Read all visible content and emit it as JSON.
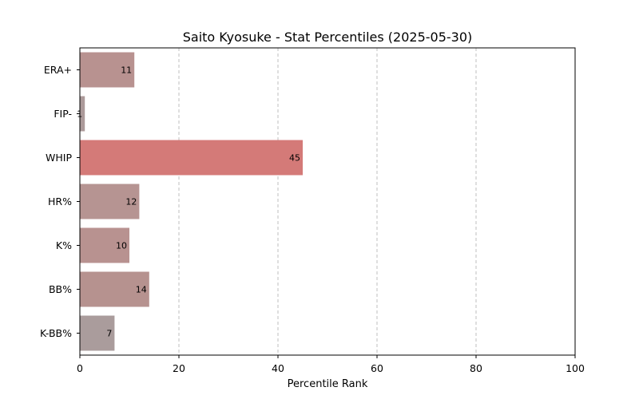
{
  "chart_data": {
    "type": "bar",
    "orientation": "horizontal",
    "title": "Saito Kyosuke - Stat Percentiles (2025-05-30)",
    "xlabel": "Percentile Rank",
    "ylabel": "",
    "xlim": [
      0,
      100
    ],
    "xticks": [
      0,
      20,
      40,
      60,
      80,
      100
    ],
    "grid": "x-dashed",
    "categories": [
      "ERA+",
      "FIP-",
      "WHIP",
      "HR%",
      "K%",
      "BB%",
      "K-BB%"
    ],
    "values": [
      11,
      1,
      45,
      12,
      10,
      14,
      7
    ],
    "colors": [
      "#b89290",
      "#ac9a9a",
      "#d47a78",
      "#b69492",
      "#b89290",
      "#b6928f",
      "#aa9c9c"
    ]
  }
}
